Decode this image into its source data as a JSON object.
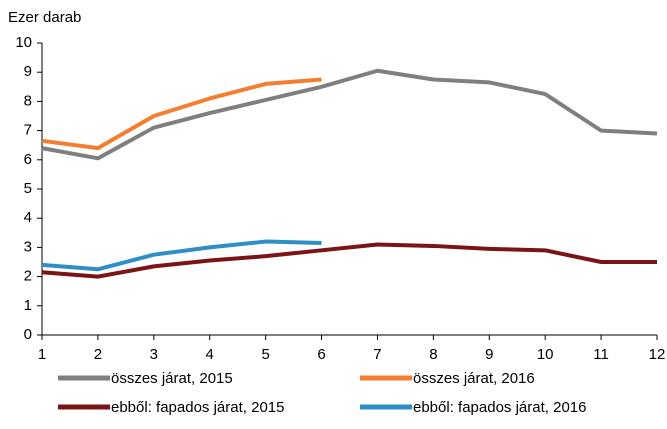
{
  "chart_data": {
    "type": "line",
    "y_axis_label": "Ezer darab",
    "x": [
      1,
      2,
      3,
      4,
      5,
      6,
      7,
      8,
      9,
      10,
      11,
      12
    ],
    "xlim": [
      1,
      12
    ],
    "xticks": [
      1,
      2,
      3,
      4,
      5,
      6,
      7,
      8,
      9,
      10,
      11,
      12
    ],
    "ylim": [
      0,
      10
    ],
    "yticks": [
      0,
      1,
      2,
      3,
      4,
      5,
      6,
      7,
      8,
      9,
      10
    ],
    "legend": "bottom",
    "series": [
      {
        "name": "összes járat, 2015",
        "color": "#7f7f7f",
        "values": [
          6.4,
          6.05,
          7.1,
          7.6,
          8.05,
          8.5,
          9.05,
          8.75,
          8.65,
          8.25,
          7.0,
          6.9
        ]
      },
      {
        "name": "összes járat, 2016",
        "color": "#f47d30",
        "values": [
          6.65,
          6.4,
          7.5,
          8.1,
          8.6,
          8.75,
          null,
          null,
          null,
          null,
          null,
          null
        ]
      },
      {
        "name": "ebből: fapados járat, 2015",
        "color": "#7b1416",
        "values": [
          2.15,
          2.0,
          2.35,
          2.55,
          2.7,
          2.9,
          3.1,
          3.05,
          2.95,
          2.9,
          2.5,
          2.5
        ]
      },
      {
        "name": "ebből: fapados járat, 2016",
        "color": "#2e8fc6",
        "values": [
          2.4,
          2.25,
          2.75,
          3.0,
          3.2,
          3.15,
          null,
          null,
          null,
          null,
          null,
          null
        ]
      }
    ]
  }
}
